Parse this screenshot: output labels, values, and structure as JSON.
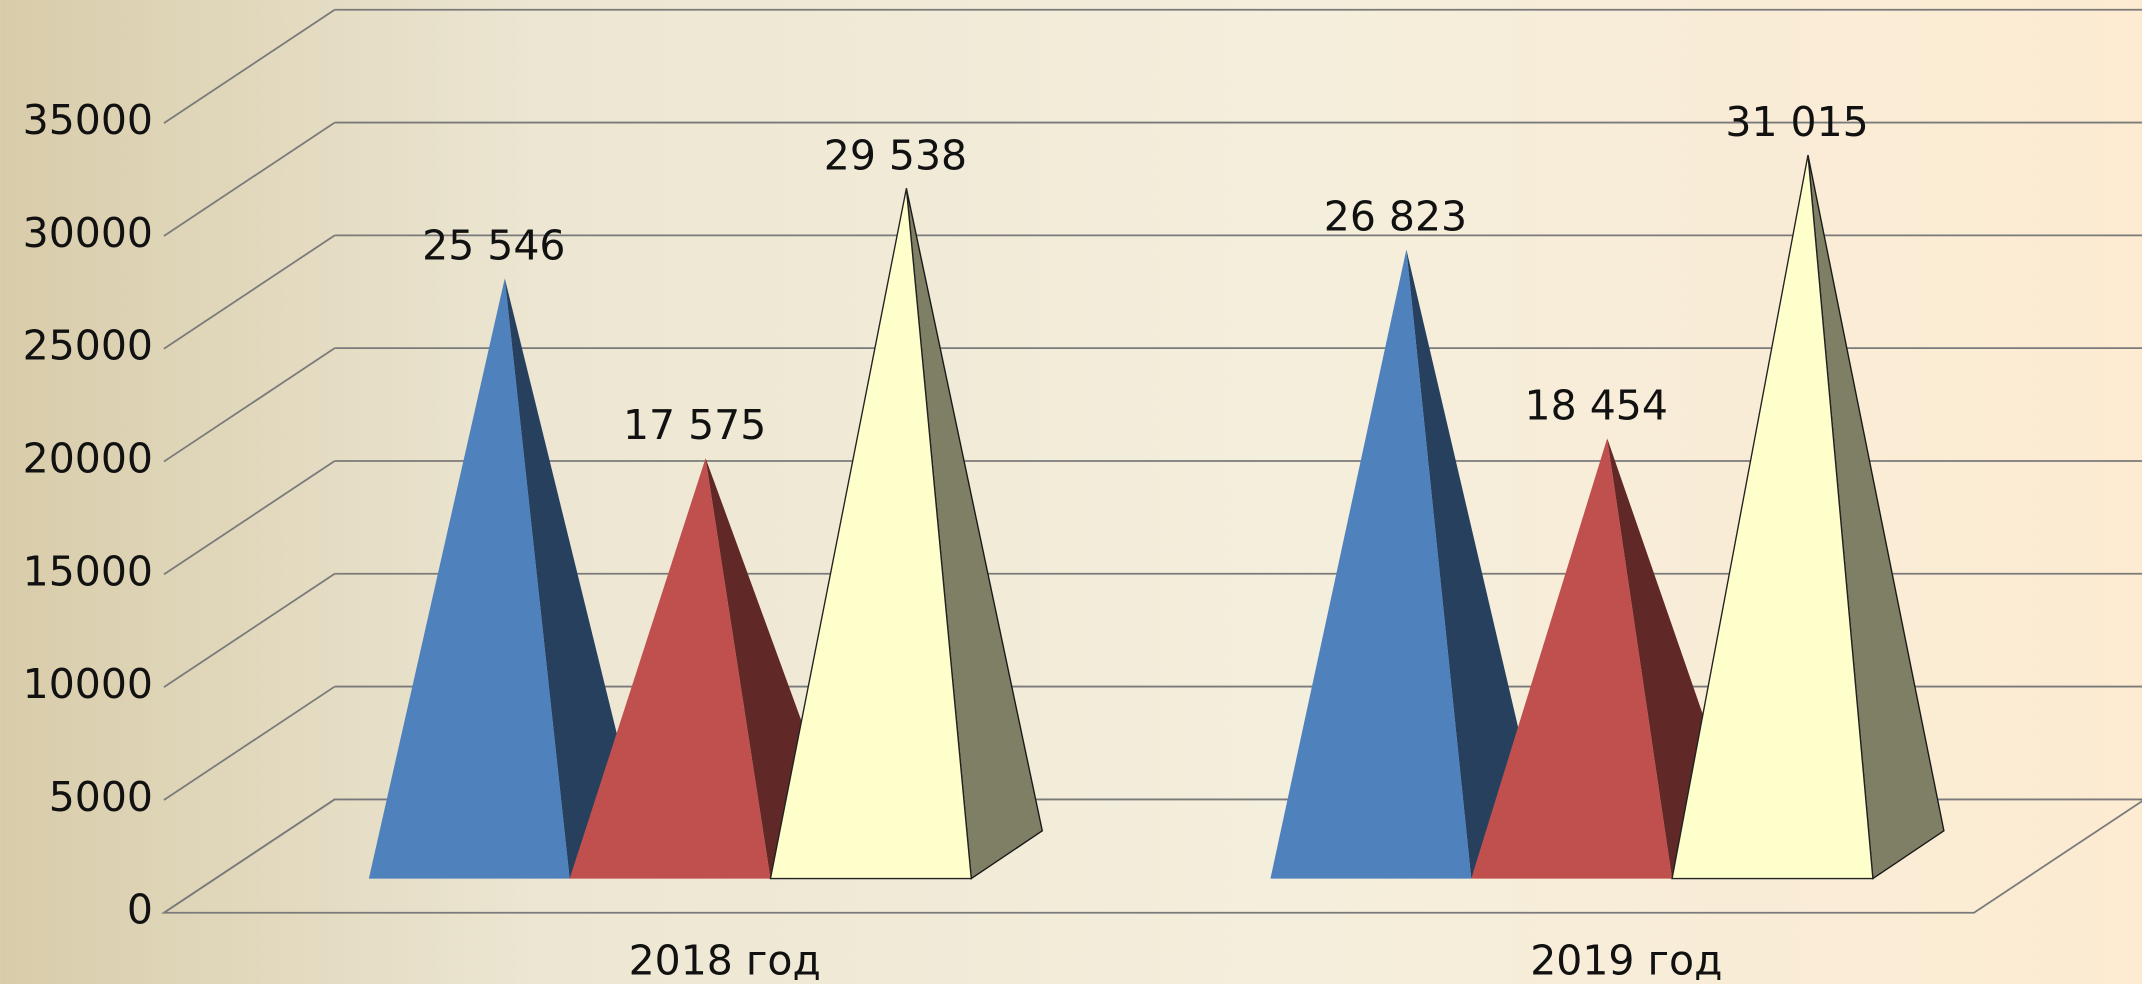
{
  "chart_data": {
    "type": "pyramid3d",
    "categories": [
      "2018 год",
      "2019 год"
    ],
    "series": [
      {
        "color": "#4f81bd",
        "values": [
          25546,
          26823
        ],
        "value_labels": [
          "25 546",
          "26 823"
        ]
      },
      {
        "color": "#c0504d",
        "values": [
          17575,
          18454
        ],
        "value_labels": [
          "17 575",
          "18 454"
        ]
      },
      {
        "color": "#ffffcc",
        "values": [
          29538,
          31015
        ],
        "value_labels": [
          "29 538",
          "31 015"
        ]
      }
    ],
    "ylim": [
      0,
      35000
    ],
    "yticks": [
      0,
      5000,
      10000,
      15000,
      20000,
      25000,
      30000,
      35000
    ],
    "grid": true
  }
}
